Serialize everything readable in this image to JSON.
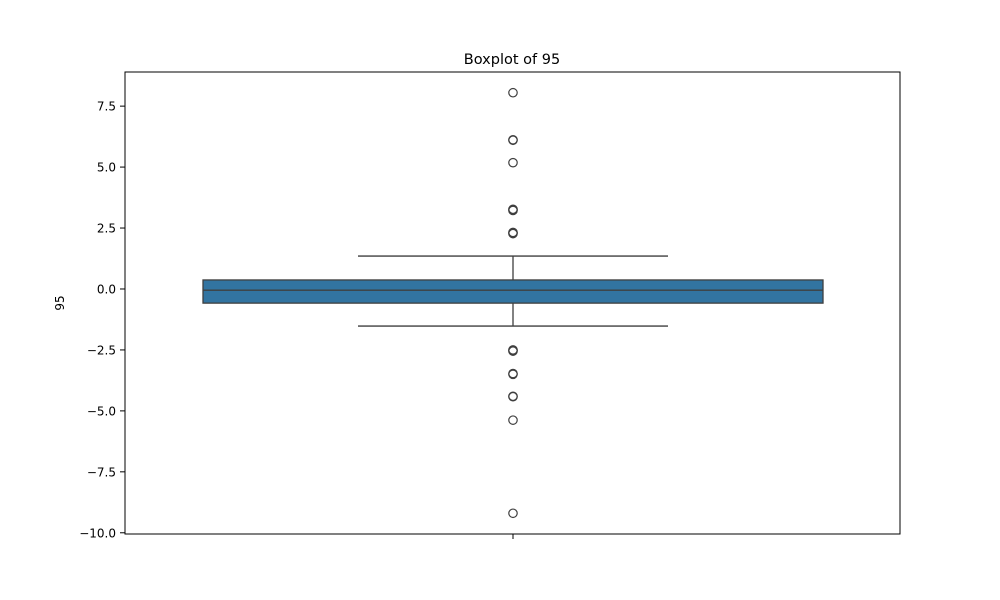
{
  "chart_data": {
    "type": "box",
    "title": "Boxplot of 95",
    "xlabel": "",
    "ylabel": "95",
    "ylim": [
      -10.05,
      8.9
    ],
    "yticks": [
      -10.0,
      -7.5,
      -5.0,
      -2.5,
      0.0,
      2.5,
      5.0,
      7.5
    ],
    "ytick_labels": [
      "−10.0",
      "−7.5",
      "−5.0",
      "−2.5",
      "0.0",
      "2.5",
      "5.0",
      "7.5"
    ],
    "grid": false,
    "legend": "none",
    "box": {
      "q1": -0.58,
      "median": -0.05,
      "q3": 0.37,
      "whisker_low": -1.52,
      "whisker_high": 1.35
    },
    "outliers": [
      8.05,
      6.1,
      6.12,
      5.18,
      3.22,
      3.25,
      3.27,
      2.27,
      2.3,
      2.32,
      -2.5,
      -2.52,
      -2.55,
      -3.47,
      -3.5,
      -4.4,
      -4.42,
      -5.38,
      -9.2
    ],
    "colors": {
      "box_fill": "#3274a1",
      "line": "#3f3f3f"
    }
  }
}
